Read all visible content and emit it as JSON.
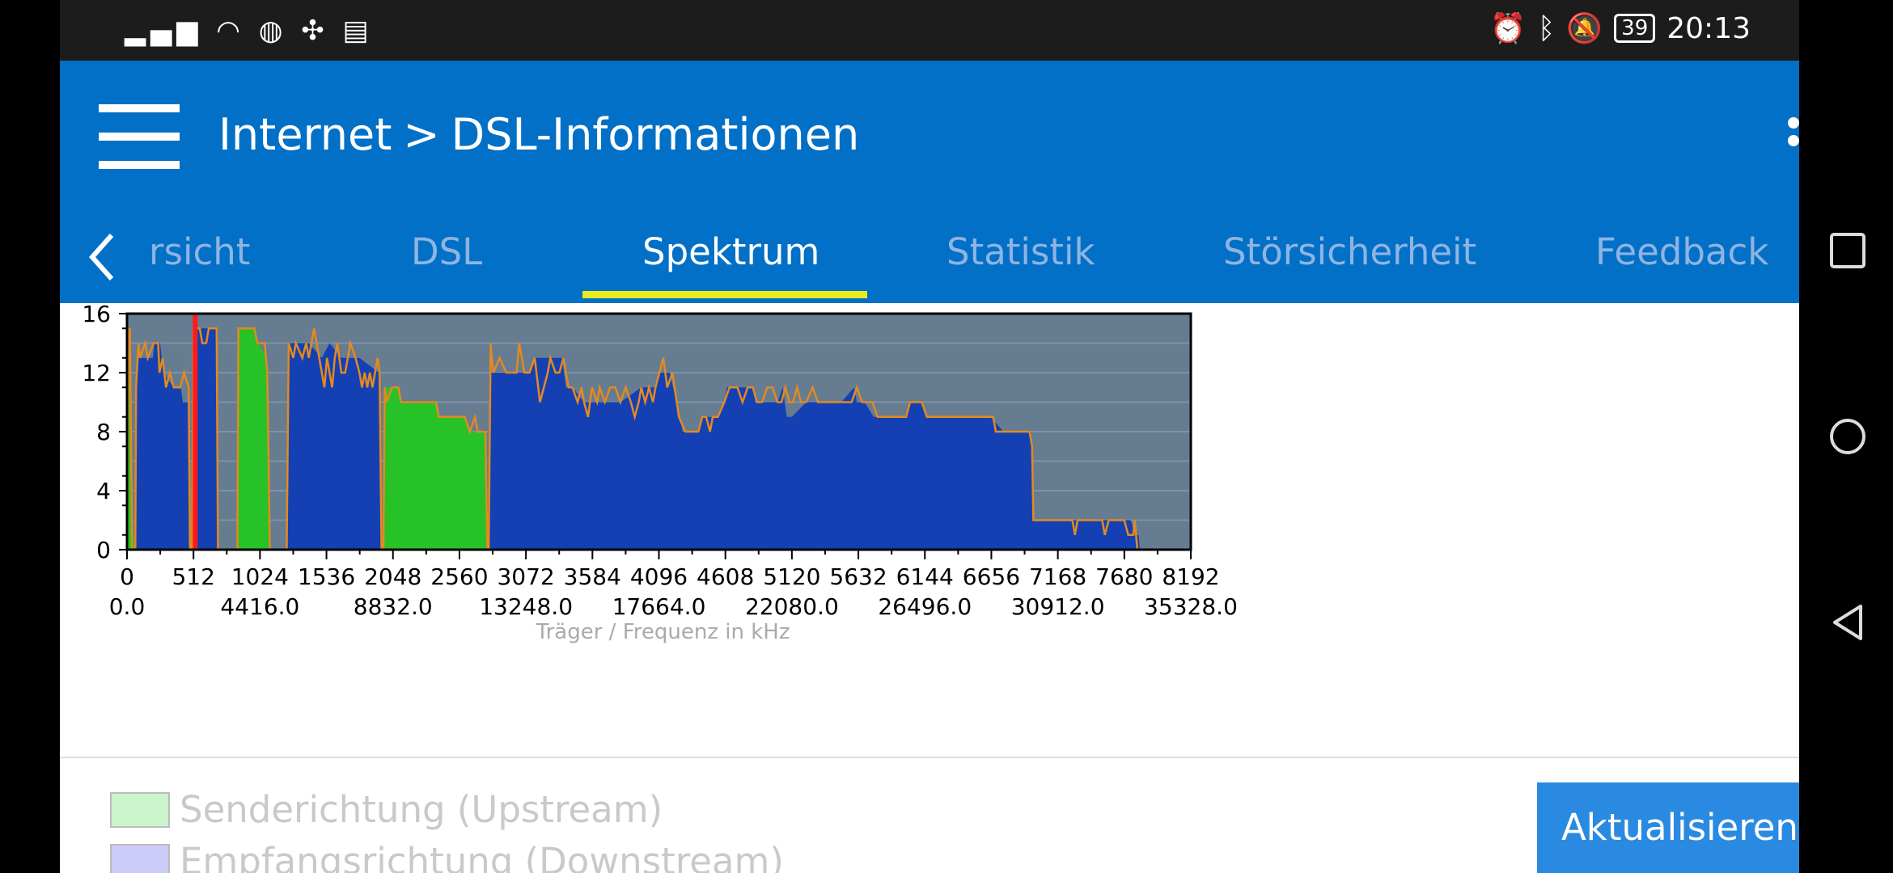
{
  "status_bar": {
    "left_icons": [
      "signal-icon",
      "wifi-icon",
      "vpn-icon",
      "fan-icon",
      "calendar-icon"
    ],
    "right_icons": [
      "alarm-icon",
      "bluetooth-icon",
      "mute-icon"
    ],
    "battery": "39",
    "time": "20:13"
  },
  "header": {
    "crumb_parent": "Internet",
    "crumb_separator": ">",
    "crumb_current": "DSL-Informationen"
  },
  "tabs": [
    {
      "label": "rsicht",
      "active": false
    },
    {
      "label": "DSL",
      "active": false
    },
    {
      "label": "Spektrum",
      "active": true
    },
    {
      "label": "Statistik",
      "active": false
    },
    {
      "label": "Störsicherheit",
      "active": false
    },
    {
      "label": "Feedback",
      "active": false
    }
  ],
  "legend": {
    "upstream": "Senderichtung (Upstream)",
    "downstream": "Empfangsrichtung (Downstream)"
  },
  "refresh_button": "Aktualisieren",
  "colors": {
    "app_bar": "#0270c6",
    "tab_indicator": "#e7ec1f",
    "chart_background": "#667c91",
    "downstream_fill": "#1440b4",
    "upstream_fill": "#27c227",
    "max_line": "#e38a1f",
    "marker": "#ff1a1a"
  },
  "chart_data": {
    "type": "area",
    "xlabel": "Träger / Frequenz in kHz",
    "ylabel": "",
    "xlim": [
      0,
      8192
    ],
    "ylim": [
      0,
      16
    ],
    "y_ticks": [
      "0",
      "4",
      "8",
      "12",
      "16"
    ],
    "x_ticks": [
      "0",
      "512",
      "1024",
      "1536",
      "2048",
      "2560",
      "3072",
      "3584",
      "4096",
      "4608",
      "5120",
      "5632",
      "6144",
      "6656",
      "7168",
      "7680",
      "8192"
    ],
    "freq_ticks": [
      "0.0",
      "4416.0",
      "8832.0",
      "13248.0",
      "17664.0",
      "22080.0",
      "26496.0",
      "30912.0",
      "35328.0"
    ],
    "marker_x": 525,
    "series": [
      {
        "values": [
          [
            0,
            0
          ],
          [
            6,
            15
          ],
          [
            12,
            15
          ],
          [
            36,
            2
          ],
          [
            64,
            0
          ]
        ]
      },
      {
        "values": [
          [
            70,
            0
          ],
          [
            78,
            14
          ],
          [
            90,
            13
          ],
          [
            200,
            13
          ],
          [
            210,
            14
          ],
          [
            255,
            14
          ],
          [
            280,
            12
          ],
          [
            360,
            11
          ],
          [
            415,
            11
          ],
          [
            430,
            10
          ],
          [
            470,
            10
          ],
          [
            478,
            0
          ]
        ]
      },
      {
        "values": [
          [
            500,
            0
          ],
          [
            508,
            14
          ],
          [
            520,
            15
          ],
          [
            690,
            15
          ],
          [
            700,
            0
          ]
        ]
      },
      {
        "values": [
          [
            850,
            0
          ],
          [
            860,
            15
          ],
          [
            980,
            15
          ],
          [
            1010,
            14
          ],
          [
            1080,
            13
          ],
          [
            1095,
            0
          ]
        ]
      },
      {
        "values": [
          [
            1230,
            0
          ],
          [
            1240,
            14
          ],
          [
            1400,
            14
          ],
          [
            1500,
            13
          ],
          [
            1560,
            14
          ],
          [
            1650,
            13
          ],
          [
            1790,
            13
          ],
          [
            1940,
            12
          ],
          [
            1960,
            0
          ]
        ]
      },
      {
        "values": [
          [
            1970,
            0
          ],
          [
            1980,
            11
          ],
          [
            2090,
            11
          ],
          [
            2100,
            10
          ],
          [
            2370,
            10
          ],
          [
            2400,
            9
          ],
          [
            2600,
            9
          ],
          [
            2650,
            8
          ],
          [
            2760,
            8
          ],
          [
            2775,
            0
          ]
        ]
      },
      {
        "values": [
          [
            2780,
            0
          ],
          [
            2790,
            12
          ],
          [
            2970,
            12
          ],
          [
            3010,
            12
          ],
          [
            3100,
            12
          ],
          [
            3150,
            13
          ],
          [
            3350,
            13
          ],
          [
            3380,
            11
          ],
          [
            3430,
            11
          ],
          [
            3520,
            10
          ],
          [
            3600,
            10
          ],
          [
            3800,
            10
          ],
          [
            3960,
            11
          ],
          [
            4070,
            11
          ],
          [
            4110,
            12
          ],
          [
            4180,
            12
          ],
          [
            4280,
            8
          ],
          [
            4400,
            8
          ],
          [
            4440,
            9
          ],
          [
            4550,
            9
          ],
          [
            4600,
            10
          ],
          [
            4620,
            11
          ],
          [
            4820,
            11
          ],
          [
            4840,
            10
          ],
          [
            5010,
            10
          ],
          [
            5050,
            11
          ],
          [
            5080,
            9
          ],
          [
            5120,
            9
          ],
          [
            5230,
            10
          ],
          [
            5330,
            10
          ],
          [
            5500,
            10
          ],
          [
            5600,
            11
          ],
          [
            5620,
            10
          ],
          [
            5680,
            10
          ],
          [
            5750,
            9
          ],
          [
            6000,
            9
          ],
          [
            6030,
            10
          ],
          [
            6120,
            10
          ],
          [
            6150,
            9
          ],
          [
            6250,
            9
          ],
          [
            6500,
            9
          ],
          [
            6650,
            9
          ],
          [
            6750,
            8
          ],
          [
            6960,
            8
          ],
          [
            6985,
            2
          ],
          [
            7490,
            2
          ],
          [
            7730,
            2
          ],
          [
            7760,
            1
          ],
          [
            7790,
            1
          ],
          [
            7800,
            0
          ]
        ]
      }
    ],
    "max_line": [
      [
        0,
        0
      ],
      [
        10,
        15
      ],
      [
        14,
        13
      ],
      [
        22,
        15
      ],
      [
        40,
        0
      ],
      [
        64,
        0
      ],
      [
        70,
        11
      ],
      [
        88,
        14
      ],
      [
        100,
        13
      ],
      [
        140,
        14
      ],
      [
        160,
        13
      ],
      [
        205,
        14
      ],
      [
        240,
        14
      ],
      [
        250,
        12
      ],
      [
        275,
        13
      ],
      [
        300,
        11
      ],
      [
        330,
        12
      ],
      [
        360,
        11
      ],
      [
        410,
        11
      ],
      [
        440,
        12
      ],
      [
        475,
        11
      ],
      [
        485,
        0
      ],
      [
        500,
        0
      ],
      [
        512,
        15
      ],
      [
        560,
        15
      ],
      [
        580,
        14
      ],
      [
        590,
        14
      ],
      [
        610,
        14
      ],
      [
        630,
        15
      ],
      [
        690,
        15
      ],
      [
        700,
        0
      ],
      [
        850,
        0
      ],
      [
        858,
        15
      ],
      [
        980,
        15
      ],
      [
        1005,
        14
      ],
      [
        1060,
        14
      ],
      [
        1080,
        12
      ],
      [
        1100,
        0
      ],
      [
        1230,
        0
      ],
      [
        1245,
        14
      ],
      [
        1280,
        13
      ],
      [
        1300,
        14
      ],
      [
        1350,
        13
      ],
      [
        1380,
        14
      ],
      [
        1400,
        13
      ],
      [
        1440,
        15
      ],
      [
        1460,
        14
      ],
      [
        1480,
        13
      ],
      [
        1500,
        12
      ],
      [
        1520,
        11
      ],
      [
        1540,
        13
      ],
      [
        1560,
        12
      ],
      [
        1580,
        11
      ],
      [
        1600,
        13
      ],
      [
        1620,
        14
      ],
      [
        1650,
        12
      ],
      [
        1680,
        12
      ],
      [
        1700,
        13
      ],
      [
        1720,
        14
      ],
      [
        1760,
        13
      ],
      [
        1790,
        12
      ],
      [
        1810,
        11
      ],
      [
        1830,
        12
      ],
      [
        1850,
        11
      ],
      [
        1870,
        12
      ],
      [
        1890,
        11
      ],
      [
        1910,
        12
      ],
      [
        1930,
        13
      ],
      [
        1945,
        12
      ],
      [
        1960,
        0
      ],
      [
        1975,
        0
      ],
      [
        1985,
        11
      ],
      [
        2000,
        10
      ],
      [
        2040,
        11
      ],
      [
        2090,
        11
      ],
      [
        2110,
        10
      ],
      [
        2380,
        10
      ],
      [
        2400,
        9
      ],
      [
        2600,
        9
      ],
      [
        2640,
        8
      ],
      [
        2680,
        9
      ],
      [
        2700,
        8
      ],
      [
        2760,
        8
      ],
      [
        2775,
        0
      ],
      [
        2785,
        0
      ],
      [
        2800,
        14
      ],
      [
        2820,
        12
      ],
      [
        2870,
        13
      ],
      [
        2920,
        12
      ],
      [
        3000,
        12
      ],
      [
        3020,
        14
      ],
      [
        3060,
        12
      ],
      [
        3100,
        12
      ],
      [
        3140,
        13
      ],
      [
        3180,
        10
      ],
      [
        3210,
        11
      ],
      [
        3240,
        12
      ],
      [
        3260,
        13
      ],
      [
        3300,
        12
      ],
      [
        3330,
        12
      ],
      [
        3360,
        13
      ],
      [
        3400,
        11
      ],
      [
        3430,
        11
      ],
      [
        3470,
        10
      ],
      [
        3500,
        11
      ],
      [
        3520,
        10
      ],
      [
        3550,
        9
      ],
      [
        3580,
        11
      ],
      [
        3620,
        10
      ],
      [
        3640,
        11
      ],
      [
        3680,
        10
      ],
      [
        3720,
        11
      ],
      [
        3760,
        11
      ],
      [
        3800,
        10
      ],
      [
        3840,
        11
      ],
      [
        3880,
        10
      ],
      [
        3910,
        9
      ],
      [
        3940,
        10
      ],
      [
        3960,
        11
      ],
      [
        3990,
        10
      ],
      [
        4020,
        11
      ],
      [
        4050,
        10
      ],
      [
        4070,
        11
      ],
      [
        4100,
        12
      ],
      [
        4130,
        13
      ],
      [
        4160,
        11
      ],
      [
        4200,
        12
      ],
      [
        4250,
        9
      ],
      [
        4300,
        8
      ],
      [
        4400,
        8
      ],
      [
        4430,
        9
      ],
      [
        4460,
        9
      ],
      [
        4490,
        8
      ],
      [
        4510,
        9
      ],
      [
        4550,
        9
      ],
      [
        4600,
        10
      ],
      [
        4640,
        11
      ],
      [
        4700,
        11
      ],
      [
        4740,
        10
      ],
      [
        4780,
        11
      ],
      [
        4820,
        11
      ],
      [
        4850,
        10
      ],
      [
        4890,
        10
      ],
      [
        4930,
        11
      ],
      [
        4970,
        11
      ],
      [
        5010,
        10
      ],
      [
        5040,
        10
      ],
      [
        5070,
        11
      ],
      [
        5100,
        10
      ],
      [
        5130,
        10
      ],
      [
        5160,
        11
      ],
      [
        5190,
        10
      ],
      [
        5230,
        10
      ],
      [
        5280,
        11
      ],
      [
        5320,
        10
      ],
      [
        5380,
        10
      ],
      [
        5440,
        10
      ],
      [
        5500,
        10
      ],
      [
        5540,
        10
      ],
      [
        5580,
        10
      ],
      [
        5620,
        11
      ],
      [
        5660,
        10
      ],
      [
        5700,
        10
      ],
      [
        5740,
        10
      ],
      [
        5780,
        9
      ],
      [
        5830,
        9
      ],
      [
        5880,
        9
      ],
      [
        6000,
        9
      ],
      [
        6030,
        10
      ],
      [
        6120,
        10
      ],
      [
        6160,
        9
      ],
      [
        6650,
        9
      ],
      [
        6670,
        9
      ],
      [
        6690,
        8
      ],
      [
        6950,
        8
      ],
      [
        6970,
        7
      ],
      [
        6980,
        2
      ],
      [
        7280,
        2
      ],
      [
        7300,
        1
      ],
      [
        7320,
        2
      ],
      [
        7510,
        2
      ],
      [
        7530,
        1
      ],
      [
        7560,
        2
      ],
      [
        7680,
        2
      ],
      [
        7710,
        1
      ],
      [
        7750,
        1
      ],
      [
        7760,
        2
      ],
      [
        7780,
        0
      ],
      [
        7800,
        0
      ]
    ]
  }
}
